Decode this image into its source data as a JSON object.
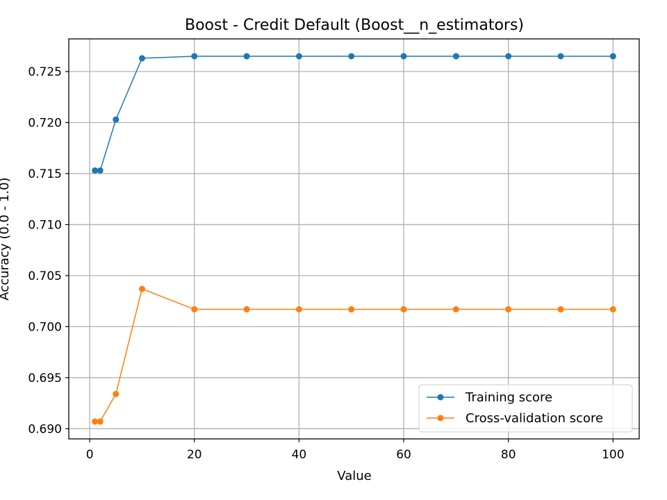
{
  "chart_data": {
    "type": "line",
    "title": "Boost - Credit Default (Boost__n_estimators)",
    "xlabel": "Value",
    "ylabel": "Accuracy (0.0 - 1.0)",
    "xlim": [
      -4,
      105
    ],
    "ylim": [
      0.689,
      0.7282
    ],
    "x_ticks": [
      0,
      20,
      40,
      60,
      80,
      100
    ],
    "x_tick_labels": [
      "0",
      "20",
      "40",
      "60",
      "80",
      "100"
    ],
    "y_ticks": [
      0.69,
      0.695,
      0.7,
      0.705,
      0.71,
      0.715,
      0.72,
      0.725
    ],
    "y_tick_labels": [
      "0.690",
      "0.695",
      "0.700",
      "0.705",
      "0.710",
      "0.715",
      "0.720",
      "0.725"
    ],
    "grid": true,
    "legend_position": "lower-right",
    "x": [
      1,
      2,
      5,
      10,
      20,
      30,
      40,
      50,
      60,
      70,
      80,
      90,
      100
    ],
    "series": [
      {
        "name": "Training score",
        "color": "#1f77b4",
        "values": [
          0.7153,
          0.7153,
          0.7203,
          0.7263,
          0.7265,
          0.7265,
          0.7265,
          0.7265,
          0.7265,
          0.7265,
          0.7265,
          0.7265,
          0.7265
        ]
      },
      {
        "name": "Cross-validation score",
        "color": "#ff7f0e",
        "values": [
          0.6907,
          0.6907,
          0.6934,
          0.7037,
          0.7017,
          0.7017,
          0.7017,
          0.7017,
          0.7017,
          0.7017,
          0.7017,
          0.7017,
          0.7017
        ]
      }
    ]
  }
}
